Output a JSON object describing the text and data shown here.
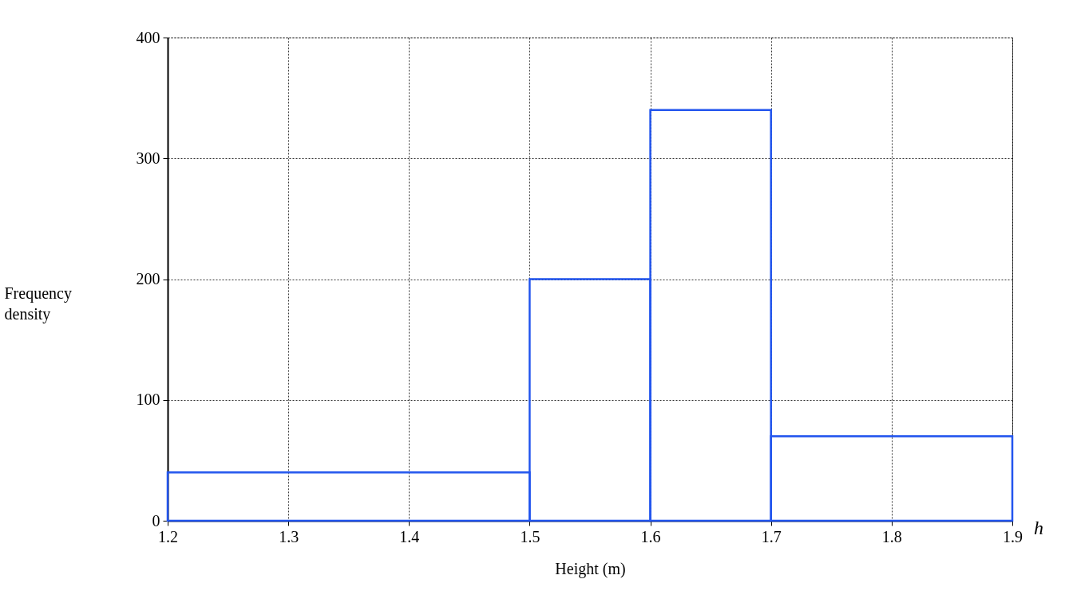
{
  "chart_data": {
    "type": "histogram",
    "xlabel": "Height (m)",
    "ylabel": "Frequency density",
    "bins": [
      1.2,
      1.5,
      1.6,
      1.7,
      1.9
    ],
    "values": [
      40,
      200,
      340,
      70
    ],
    "color": "#2255ee",
    "xlim": [
      1.2,
      1.9
    ],
    "xticks": [
      1.2,
      1.3,
      1.4,
      1.5,
      1.6,
      1.7,
      1.8,
      1.9
    ],
    "ylim": [
      0,
      400
    ],
    "yticks": [
      0,
      100,
      200,
      300,
      400
    ],
    "grid": true,
    "annotations": [
      "h"
    ]
  }
}
